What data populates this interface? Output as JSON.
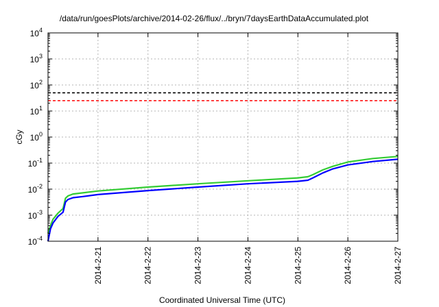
{
  "chart_data": {
    "type": "line",
    "title": "/data/run/goesPlots/archive/2014-02-26/flux/../bryn/7daysEarthDataAccumulated.plot",
    "xlabel": "Coordinated Universal Time (UTC)",
    "ylabel": "cGy",
    "y_scale": "log",
    "ylim": [
      0.0001,
      10000
    ],
    "y_ticks": [
      {
        "value": 0.0001,
        "base": "10",
        "exp": "-4"
      },
      {
        "value": 0.001,
        "base": "10",
        "exp": "-3"
      },
      {
        "value": 0.01,
        "base": "10",
        "exp": "-2"
      },
      {
        "value": 0.1,
        "base": "10",
        "exp": "-1"
      },
      {
        "value": 1,
        "base": "10",
        "exp": "0"
      },
      {
        "value": 10,
        "base": "10",
        "exp": "1"
      },
      {
        "value": 100,
        "base": "10",
        "exp": "2"
      },
      {
        "value": 1000,
        "base": "10",
        "exp": "3"
      },
      {
        "value": 10000,
        "base": "10",
        "exp": "4"
      }
    ],
    "xlim": [
      "2014-02-20",
      "2014-02-27"
    ],
    "x_ticks": [
      "2014-2-21",
      "2014-2-22",
      "2014-2-23",
      "2014-2-24",
      "2014-2-25",
      "2014-2-26",
      "2014-2-27"
    ],
    "grid": true,
    "thresholds": [
      {
        "y": 50,
        "color": "#000000",
        "style": "dashed"
      },
      {
        "y": 25,
        "color": "#ff0000",
        "style": "dashed"
      }
    ],
    "series": [
      {
        "color": "#33cc33",
        "x": [
          "2014-02-20 00:00",
          "2014-02-20 01:12",
          "2014-02-20 02:24",
          "2014-02-20 04:48",
          "2014-02-20 07:12",
          "2014-02-20 08:24",
          "2014-02-20 09:36",
          "2014-02-20 12:00",
          "2014-02-20 16:48",
          "2014-02-21 00:00",
          "2014-02-22 00:00",
          "2014-02-23 00:00",
          "2014-02-24 00:00",
          "2014-02-25 00:00",
          "2014-02-25 04:48",
          "2014-02-25 07:12",
          "2014-02-25 12:00",
          "2014-02-25 16:48",
          "2014-02-26 00:00",
          "2014-02-26 12:00",
          "2014-02-27 00:00"
        ],
        "y": [
          0.0002,
          0.0004,
          0.0007,
          0.0012,
          0.0018,
          0.0045,
          0.0055,
          0.0065,
          0.0072,
          0.0085,
          0.012,
          0.016,
          0.021,
          0.027,
          0.03,
          0.036,
          0.055,
          0.075,
          0.11,
          0.15,
          0.18
        ]
      },
      {
        "color": "#0000ff",
        "x": [
          "2014-02-20 00:00",
          "2014-02-20 01:12",
          "2014-02-20 02:24",
          "2014-02-20 04:48",
          "2014-02-20 07:12",
          "2014-02-20 08:24",
          "2014-02-20 09:36",
          "2014-02-20 12:00",
          "2014-02-20 16:48",
          "2014-02-21 00:00",
          "2014-02-22 00:00",
          "2014-02-23 00:00",
          "2014-02-24 00:00",
          "2014-02-25 00:00",
          "2014-02-25 04:48",
          "2014-02-25 07:12",
          "2014-02-25 12:00",
          "2014-02-25 16:48",
          "2014-02-26 00:00",
          "2014-02-26 12:00",
          "2014-02-27 00:00"
        ],
        "y": [
          0.0001,
          0.0003,
          0.0005,
          0.0009,
          0.0013,
          0.0032,
          0.004,
          0.0047,
          0.0052,
          0.0062,
          0.0088,
          0.012,
          0.016,
          0.02,
          0.022,
          0.027,
          0.042,
          0.06,
          0.085,
          0.115,
          0.14
        ]
      }
    ]
  }
}
